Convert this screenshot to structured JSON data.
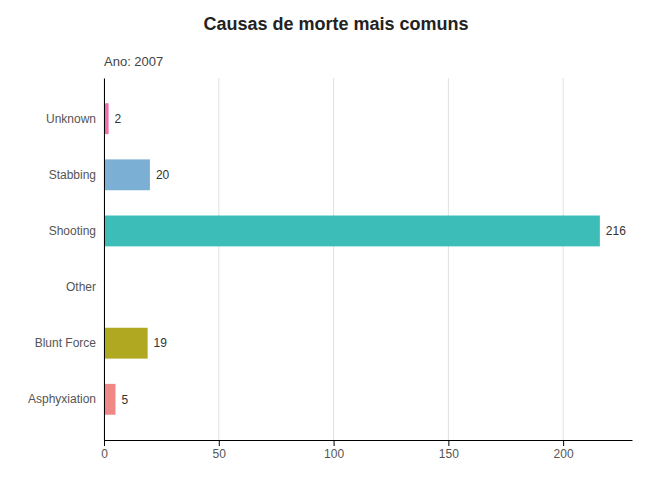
{
  "chart_data": {
    "type": "bar",
    "orientation": "horizontal",
    "title": "Causas de morte mais comuns",
    "subtitle": "Ano: 2007",
    "categories": [
      "Unknown",
      "Stabbing",
      "Shooting",
      "Other",
      "Blunt Force",
      "Asphyxiation"
    ],
    "values": [
      2,
      20,
      216,
      0,
      19,
      5
    ],
    "colors": [
      "#f06eaa",
      "#7bafd4",
      "#3dbdb8",
      "#cccccc",
      "#b0a820",
      "#f08888"
    ],
    "xlim": [
      0,
      230
    ],
    "xticks": [
      0,
      50,
      100,
      150,
      200
    ],
    "grid": true,
    "data_labels": true
  }
}
